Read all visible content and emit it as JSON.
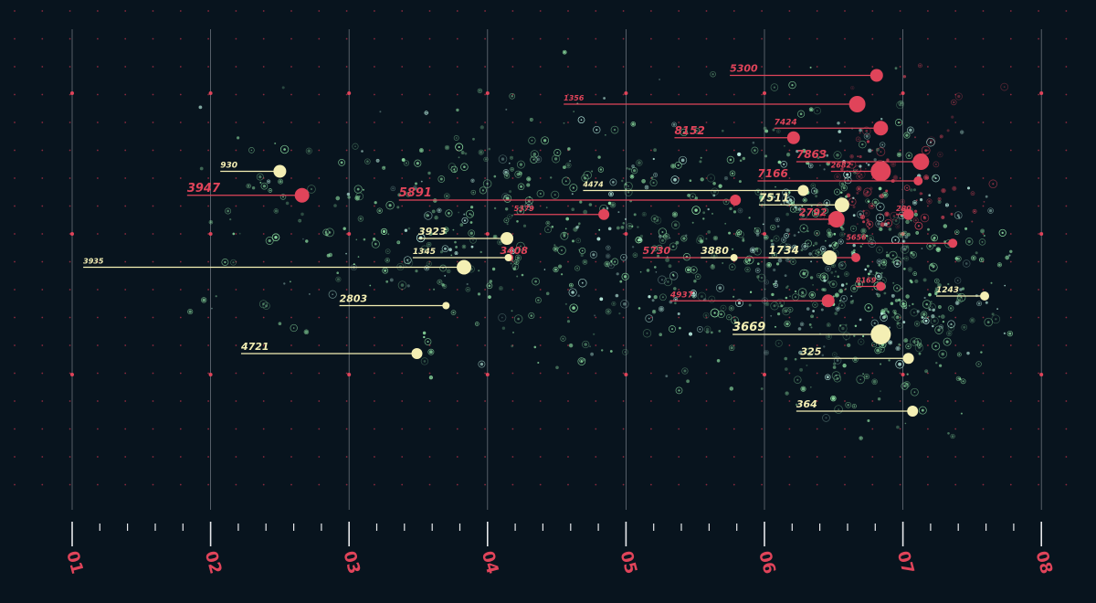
{
  "colors": {
    "background": "#08141e",
    "accent_red": "#e0445a",
    "accent_cream": "#f4efb4",
    "scatter_green": "#8fe0a2",
    "scatter_mint": "#bff5e6",
    "axis_line": "#b9bec6",
    "grid_dot": "#b8324a"
  },
  "chart_data": {
    "type": "scatter",
    "title": "",
    "xlabel": "",
    "ylabel": "",
    "xlim": [
      1,
      8
    ],
    "ylim": [
      0,
      100
    ],
    "x_tick_labels": [
      "01",
      "02",
      "03",
      "04",
      "05",
      "06",
      "07",
      "08"
    ],
    "grid": "dotted",
    "series": [
      {
        "color": "red",
        "points": [
          {
            "label": "5300",
            "x": 6.81,
            "y": 90,
            "size": 7,
            "label_x": 5.75,
            "label_size": 11
          },
          {
            "label": "1356",
            "x": 6.67,
            "y": 84,
            "size": 9,
            "label_x": 4.55,
            "label_size": 8
          },
          {
            "label": "7424",
            "x": 6.84,
            "y": 79,
            "size": 8,
            "label_x": 6.07,
            "label_size": 9
          },
          {
            "label": "8152",
            "x": 6.21,
            "y": 77,
            "size": 7,
            "label_x": 5.35,
            "label_size": 12
          },
          {
            "label": "7863",
            "x": 7.13,
            "y": 72,
            "size": 9,
            "label_x": 6.23,
            "label_size": 12
          },
          {
            "label": "2682",
            "x": 6.84,
            "y": 70,
            "size": 11,
            "label_x": 6.48,
            "label_size": 8
          },
          {
            "label": "7166",
            "x": 7.11,
            "y": 68,
            "size": 5,
            "label_x": 5.95,
            "label_size": 12
          },
          {
            "label": "3947",
            "x": 2.66,
            "y": 65,
            "size": 8,
            "label_x": 1.83,
            "label_size": 13
          },
          {
            "label": "5891",
            "x": 5.79,
            "y": 64,
            "size": 6,
            "label_x": 3.36,
            "label_size": 13
          },
          {
            "label": "5379",
            "x": 4.84,
            "y": 61,
            "size": 6,
            "label_x": 4.19,
            "label_size": 8
          },
          {
            "label": "2792",
            "x": 6.52,
            "y": 60,
            "size": 9,
            "label_x": 6.25,
            "label_size": 11
          },
          {
            "label": "280",
            "x": 7.04,
            "y": 61,
            "size": 6,
            "label_x": 6.95,
            "label_size": 8
          },
          {
            "label": "5656",
            "x": 7.36,
            "y": 55,
            "size": 5,
            "label_x": 6.59,
            "label_size": 8
          },
          {
            "label": "3408",
            "x": 4.16,
            "y": 52,
            "size": 4,
            "label_x": 4.09,
            "label_size": 11
          },
          {
            "label": "5730",
            "x": 6.66,
            "y": 52,
            "size": 5,
            "label_x": 5.12,
            "label_size": 11
          },
          {
            "label": "8169",
            "x": 6.84,
            "y": 46,
            "size": 5,
            "label_x": 6.66,
            "label_size": 8
          },
          {
            "label": "4937",
            "x": 6.46,
            "y": 43,
            "size": 7,
            "label_x": 5.32,
            "label_size": 9
          }
        ]
      },
      {
        "color": "cream",
        "points": [
          {
            "label": "930",
            "x": 2.5,
            "y": 70,
            "size": 7,
            "label_x": 2.07,
            "label_size": 9
          },
          {
            "label": "4474",
            "x": 6.28,
            "y": 66,
            "size": 6,
            "label_x": 4.69,
            "label_size": 8
          },
          {
            "label": "7511",
            "x": 6.56,
            "y": 63,
            "size": 8,
            "label_x": 5.96,
            "label_size": 12
          },
          {
            "label": "3923",
            "x": 4.14,
            "y": 56,
            "size": 7,
            "label_x": 3.5,
            "label_size": 11
          },
          {
            "label": "3935",
            "x": 3.83,
            "y": 50,
            "size": 8,
            "label_x": 1.08,
            "label_size": 8
          },
          {
            "label": "1345",
            "x": 4.15,
            "y": 52,
            "size": 4,
            "label_x": 3.46,
            "label_size": 9
          },
          {
            "label": "3880",
            "x": 5.78,
            "y": 52,
            "size": 4,
            "label_x": 5.54,
            "label_size": 11
          },
          {
            "label": "1734",
            "x": 6.47,
            "y": 52,
            "size": 8,
            "label_x": 6.03,
            "label_size": 12
          },
          {
            "label": "1243",
            "x": 7.59,
            "y": 44,
            "size": 5,
            "label_x": 7.24,
            "label_size": 9
          },
          {
            "label": "2803",
            "x": 3.7,
            "y": 42,
            "size": 4,
            "label_x": 2.93,
            "label_size": 11
          },
          {
            "label": "3669",
            "x": 6.84,
            "y": 36,
            "size": 11,
            "label_x": 5.77,
            "label_size": 13
          },
          {
            "label": "4721",
            "x": 3.49,
            "y": 32,
            "size": 6,
            "label_x": 2.22,
            "label_size": 11
          },
          {
            "label": "325",
            "x": 7.04,
            "y": 31,
            "size": 6,
            "label_x": 6.26,
            "label_size": 11
          },
          {
            "label": "364",
            "x": 7.07,
            "y": 20,
            "size": 6,
            "label_x": 6.23,
            "label_size": 11
          }
        ]
      }
    ]
  }
}
